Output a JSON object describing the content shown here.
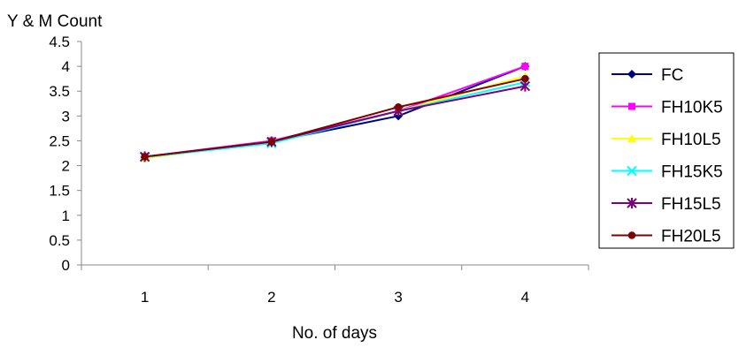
{
  "chart_data": {
    "type": "line",
    "ylabel": "Y & M Count",
    "xlabel": "No. of days",
    "categories": [
      "1",
      "2",
      "3",
      "4"
    ],
    "ylim": [
      0,
      4.5
    ],
    "yticks": [
      "0",
      "0.5",
      "1",
      "1.5",
      "2",
      "2.5",
      "3",
      "3.5",
      "4",
      "4.5"
    ],
    "grid": false,
    "legend_position": "right",
    "series": [
      {
        "name": "FC",
        "color": "#00007F",
        "marker": "diamond",
        "values": [
          2.17,
          2.48,
          3.0,
          4.0
        ]
      },
      {
        "name": "FH10K5",
        "color": "#FF00FF",
        "marker": "square",
        "values": [
          2.18,
          2.5,
          3.1,
          4.0
        ]
      },
      {
        "name": "FH10L5",
        "color": "#FFFF00",
        "marker": "triangle",
        "values": [
          2.15,
          2.48,
          3.1,
          3.8
        ]
      },
      {
        "name": "FH15K5",
        "color": "#00FFFF",
        "marker": "x",
        "values": [
          2.17,
          2.45,
          3.1,
          3.68
        ]
      },
      {
        "name": "FH15L5",
        "color": "#7F007F",
        "marker": "star",
        "values": [
          2.18,
          2.48,
          3.1,
          3.6
        ]
      },
      {
        "name": "FH20L5",
        "color": "#7F0000",
        "marker": "circle",
        "values": [
          2.18,
          2.48,
          3.18,
          3.75
        ]
      }
    ]
  }
}
